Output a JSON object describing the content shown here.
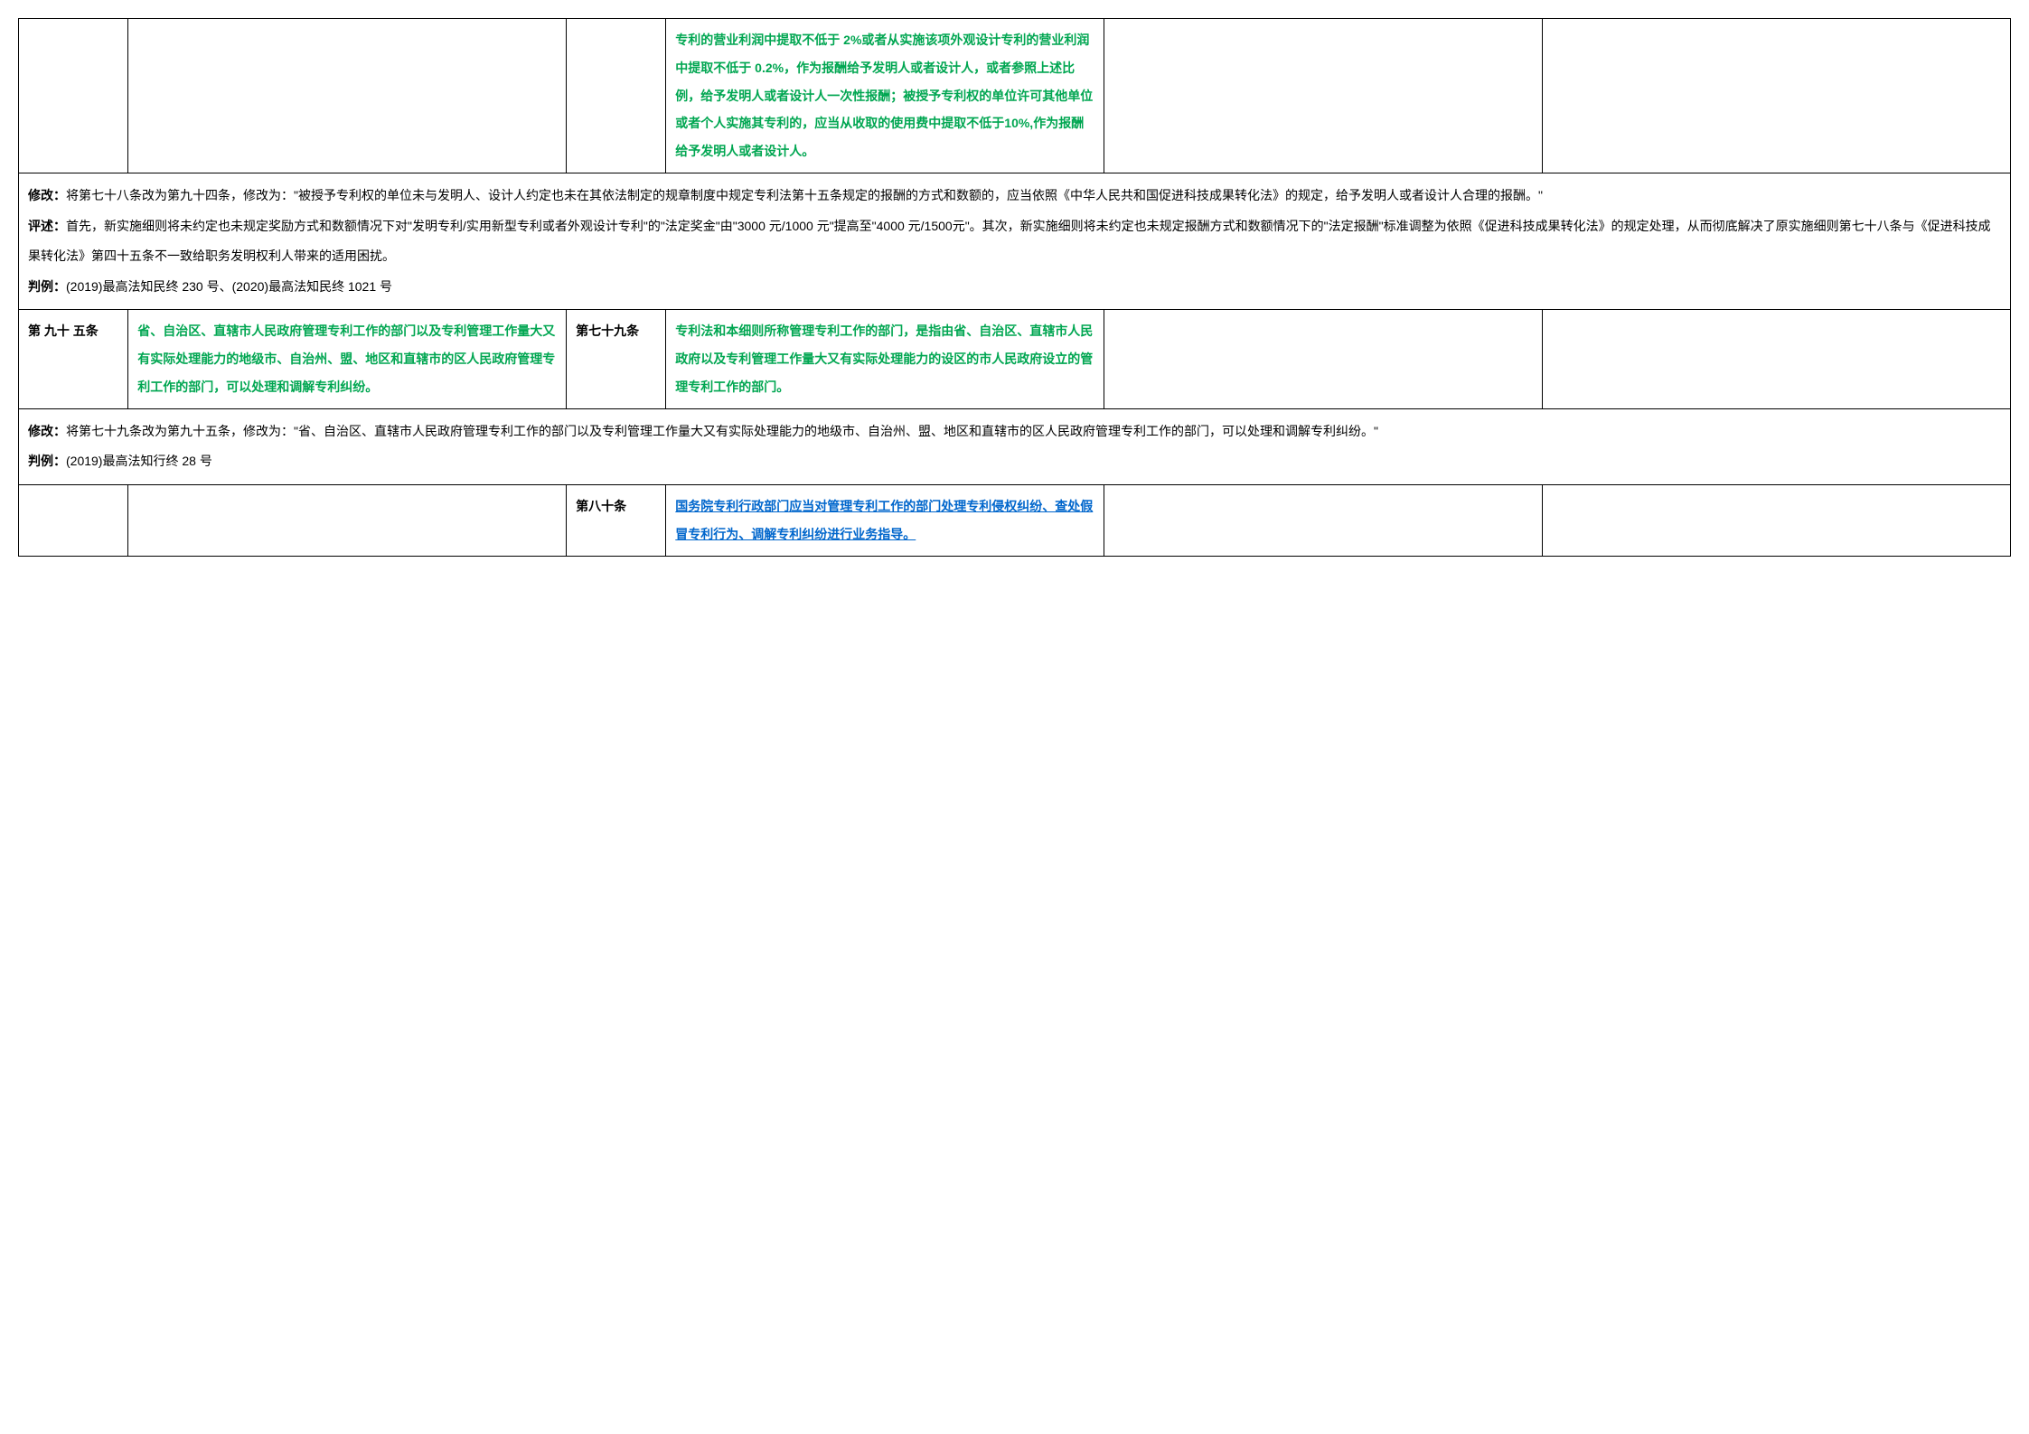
{
  "row1": {
    "cell4": "专利的营业利润中提取不低于 2%或者从实施该项外观设计专利的营业利润中提取不低于 0.2%，作为报酬给予发明人或者设计人，或者参照上述比例，给予发明人或者设计人一次性报酬；被授予专利权的单位许可其他单位或者个人实施其专利的，应当从收取的使用费中提取不低于10%,作为报酬给予发明人或者设计人。"
  },
  "row2": {
    "modify_label": "修改：",
    "modify_text": "将第七十八条改为第九十四条，修改为：\"被授予专利权的单位未与发明人、设计人约定也未在其依法制定的规章制度中规定专利法第十五条规定的报酬的方式和数额的，应当依照《中华人民共和国促进科技成果转化法》的规定，给予发明人或者设计人合理的报酬。\"",
    "comment_label": "评述：",
    "comment_text": "首先，新实施细则将未约定也未规定奖励方式和数额情况下对\"发明专利/实用新型专利或者外观设计专利\"的\"法定奖金\"由\"3000 元/1000 元\"提高至\"4000 元/1500元\"。其次，新实施细则将未约定也未规定报酬方式和数额情况下的\"法定报酬\"标准调整为依照《促进科技成果转化法》的规定处理，从而彻底解决了原实施细则第七十八条与《促进科技成果转化法》第四十五条不一致给职务发明权利人带来的适用困扰。",
    "case_label": "判例：",
    "case_text": "(2019)最高法知民终 230 号、(2020)最高法知民终 1021 号"
  },
  "row3": {
    "art_new": "第 九十 五条",
    "new_text": "省、自治区、直辖市人民政府管理专利工作的部门以及专利管理工作量大又有实际处理能力的地级市、自治州、盟、地区和直辖市的区人民政府管理专利工作的部门，可以处理和调解专利纠纷。",
    "art_old": "第七十九条",
    "old_text": "专利法和本细则所称管理专利工作的部门，是指由省、自治区、直辖市人民政府以及专利管理工作量大又有实际处理能力的设区的市人民政府设立的管理专利工作的部门。"
  },
  "row4": {
    "modify_label": "修改：",
    "modify_text": "将第七十九条改为第九十五条，修改为：\"省、自治区、直辖市人民政府管理专利工作的部门以及专利管理工作量大又有实际处理能力的地级市、自治州、盟、地区和直辖市的区人民政府管理专利工作的部门，可以处理和调解专利纠纷。\"",
    "case_label": "判例：",
    "case_text": "(2019)最高法知行终 28 号"
  },
  "row5": {
    "art_old": "第八十条",
    "old_text": "国务院专利行政部门应当对管理专利工作的部门处理专利侵权纠纷、查处假冒专利行为、调解专利纠纷进行业务指导。"
  },
  "colors": {
    "green": "#00a651",
    "blue": "#0066cc",
    "black": "#000000",
    "border": "#000000"
  }
}
